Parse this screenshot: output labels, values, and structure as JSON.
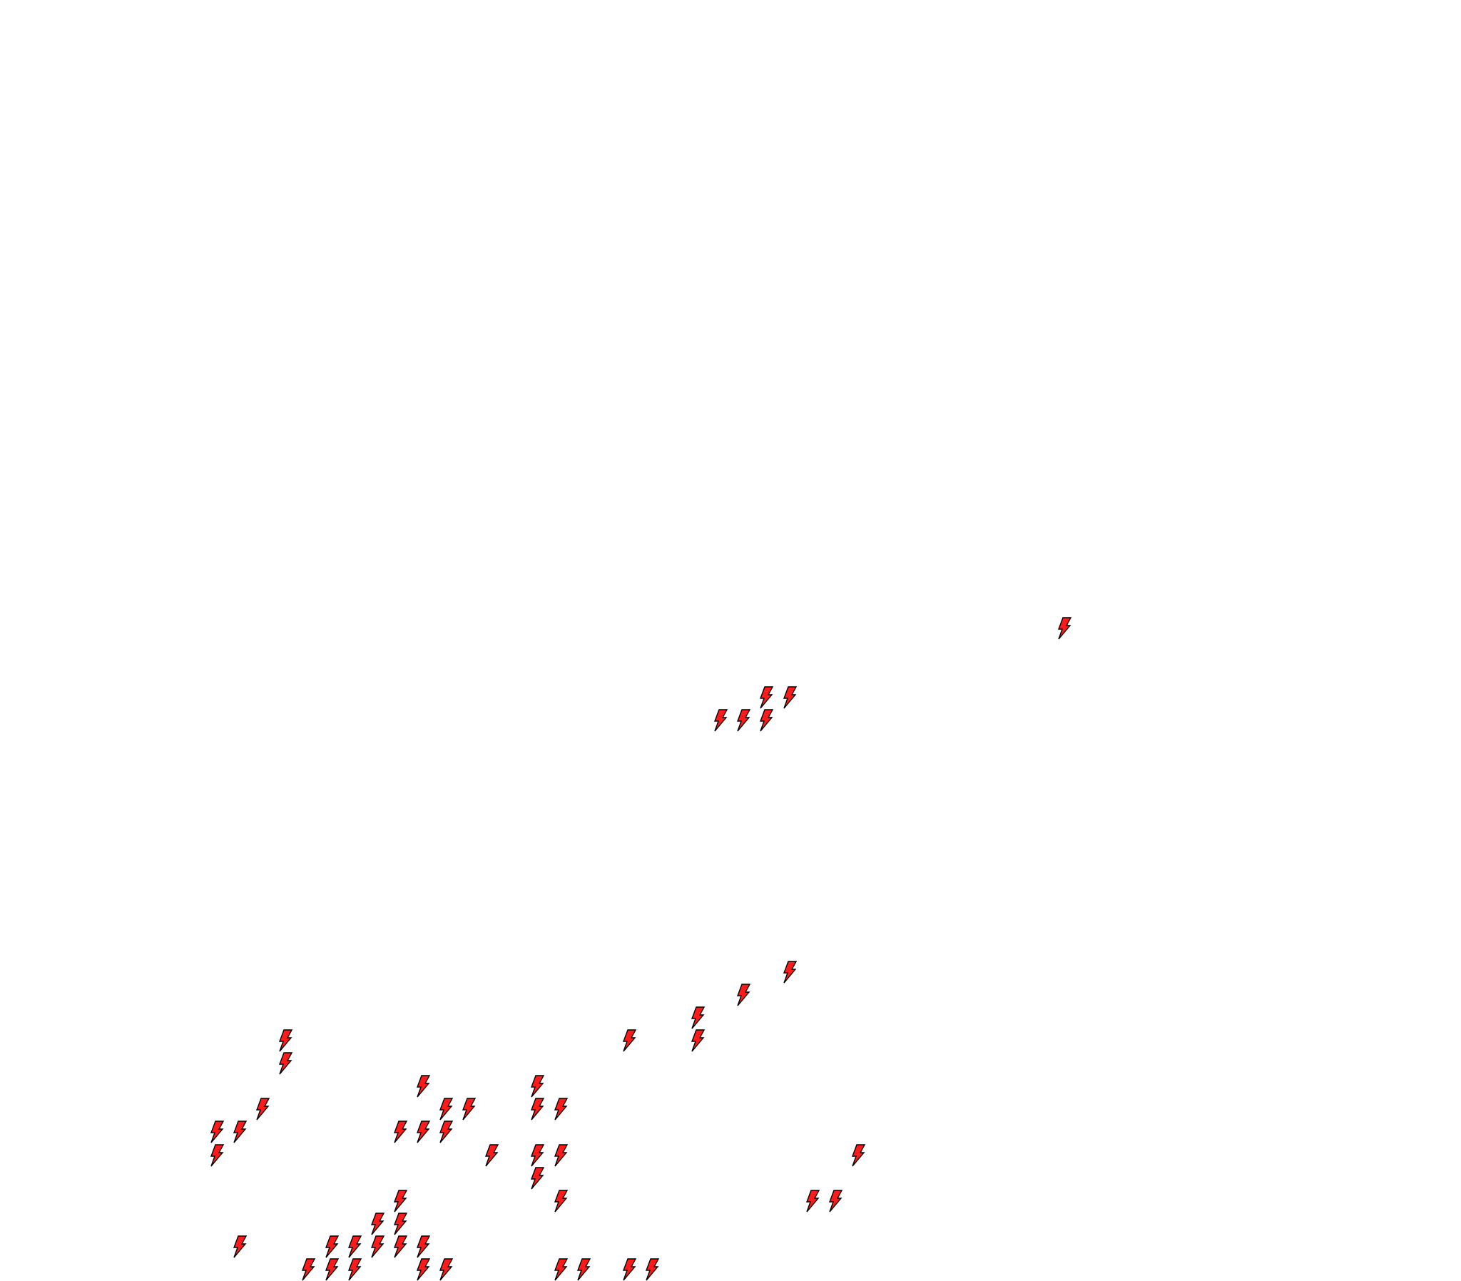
{
  "map": {
    "marker_icon": "lightning-bolt-icon",
    "marker_fill": "#ff1a1a",
    "marker_stroke": "#000000",
    "background": "#ffffff",
    "grid": {
      "markers": [
        [
          37,
          28
        ],
        [
          24,
          25
        ],
        [
          25,
          25
        ],
        [
          22,
          24
        ],
        [
          23,
          24
        ],
        [
          24,
          24
        ],
        [
          25,
          13
        ],
        [
          23,
          12
        ],
        [
          21,
          11
        ],
        [
          3,
          10
        ],
        [
          18,
          10
        ],
        [
          21,
          10
        ],
        [
          3,
          9
        ],
        [
          9,
          8
        ],
        [
          14,
          8
        ],
        [
          2,
          7
        ],
        [
          10,
          7
        ],
        [
          11,
          7
        ],
        [
          14,
          7
        ],
        [
          15,
          7
        ],
        [
          0,
          6
        ],
        [
          1,
          6
        ],
        [
          8,
          6
        ],
        [
          9,
          6
        ],
        [
          10,
          6
        ],
        [
          0,
          5
        ],
        [
          12,
          5
        ],
        [
          14,
          5
        ],
        [
          15,
          5
        ],
        [
          28,
          5
        ],
        [
          14,
          4
        ],
        [
          8,
          3
        ],
        [
          15,
          3
        ],
        [
          26,
          3
        ],
        [
          27,
          3
        ],
        [
          7,
          2
        ],
        [
          8,
          2
        ],
        [
          1,
          1
        ],
        [
          5,
          1
        ],
        [
          6,
          1
        ],
        [
          7,
          1
        ],
        [
          8,
          1
        ],
        [
          9,
          1
        ],
        [
          4,
          0
        ],
        [
          5,
          0
        ],
        [
          6,
          0
        ],
        [
          9,
          0
        ],
        [
          10,
          0
        ],
        [
          15,
          0
        ],
        [
          16,
          0
        ],
        [
          18,
          0
        ],
        [
          19,
          0
        ]
      ]
    }
  }
}
